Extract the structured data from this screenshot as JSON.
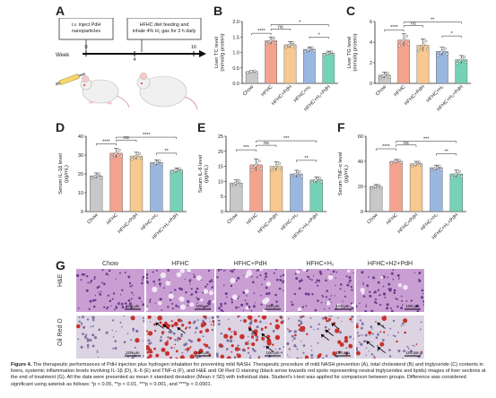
{
  "panels": {
    "A": {
      "letter": "A",
      "step1": "i.v. inject PdH\nnanoparticles",
      "step2": "HFHC diet feeding and\ninhale 4% H₂ gas for 3 h daily",
      "week_label": "Week",
      "ticks": [
        "0",
        "4",
        "16"
      ]
    },
    "B": {
      "letter": "B"
    },
    "C": {
      "letter": "C"
    },
    "D": {
      "letter": "D"
    },
    "E": {
      "letter": "E"
    },
    "F": {
      "letter": "F"
    },
    "G": {
      "letter": "G"
    }
  },
  "groups": [
    "Chow",
    "HFHC",
    "HFHC+PdH",
    "HFHC+H₂",
    "HFHC+H₂+PdH"
  ],
  "colors": {
    "chow": "#c8c8c8",
    "hfhc": "#f4a38f",
    "pdh": "#f7c88f",
    "h2": "#9ab7e0",
    "h2pdh": "#76d2b6"
  },
  "chart_data": [
    {
      "id": "B",
      "type": "bar",
      "ylabel": "Liver TC level\n(mmol/g protein)",
      "ylim": [
        0,
        2.0
      ],
      "yticks": [
        "0.0",
        "0.5",
        "1.0",
        "1.5",
        "2.0"
      ],
      "categories": [
        "Chow",
        "HFHC",
        "HFHC+PdH",
        "HFHC+H₂",
        "HFHC+H₂+PdH"
      ],
      "values": [
        0.38,
        1.38,
        1.25,
        1.1,
        0.98
      ],
      "errors": [
        0.03,
        0.12,
        0.1,
        0.08,
        0.06
      ],
      "sig": [
        {
          "from": 0,
          "to": 1,
          "label": "****",
          "level": 1.62
        },
        {
          "from": 1,
          "to": 2,
          "label": "ns",
          "level": 1.76
        },
        {
          "from": 1,
          "to": 4,
          "label": "*",
          "level": 1.9
        },
        {
          "from": 3,
          "to": 4,
          "label": "*",
          "level": 1.5
        }
      ]
    },
    {
      "id": "C",
      "type": "bar",
      "ylabel": "Liver TG level\n(mmol/g protein)",
      "ylim": [
        0,
        6
      ],
      "yticks": [
        "0",
        "2",
        "4",
        "6"
      ],
      "categories": [
        "Chow",
        "HFHC",
        "HFHC+PdH",
        "HFHC+H₂",
        "HFHC+H₂+PdH"
      ],
      "values": [
        0.8,
        4.2,
        3.7,
        3.1,
        2.3
      ],
      "errors": [
        0.3,
        0.6,
        0.6,
        0.4,
        0.4
      ],
      "sig": [
        {
          "from": 0,
          "to": 1,
          "label": "****",
          "level": 5.2
        },
        {
          "from": 1,
          "to": 2,
          "label": "ns",
          "level": 5.6
        },
        {
          "from": 1,
          "to": 4,
          "label": "**",
          "level": 5.95
        },
        {
          "from": 3,
          "to": 4,
          "label": "*",
          "level": 4.6
        }
      ]
    },
    {
      "id": "D",
      "type": "bar",
      "ylabel": "Serum IL-1β level\n(pg/mL)",
      "ylim": [
        0,
        40
      ],
      "yticks": [
        "0",
        "10",
        "20",
        "30",
        "40"
      ],
      "categories": [
        "Chow",
        "HFHC",
        "HFHC+PdH",
        "HFHC+H₂",
        "HFHC+H₂+PdH"
      ],
      "values": [
        19,
        31,
        29.5,
        26,
        22
      ],
      "errors": [
        1.5,
        2.5,
        2,
        1.5,
        1.2
      ],
      "sig": [
        {
          "from": 0,
          "to": 1,
          "label": "****",
          "level": 36
        },
        {
          "from": 1,
          "to": 2,
          "label": "ns",
          "level": 38
        },
        {
          "from": 1,
          "to": 4,
          "label": "****",
          "level": 39.5
        },
        {
          "from": 3,
          "to": 4,
          "label": "**",
          "level": 31
        }
      ]
    },
    {
      "id": "E",
      "type": "bar",
      "ylabel": "Serum IL-6 level\n(pg/mL)",
      "ylim": [
        0,
        25
      ],
      "yticks": [
        "0",
        "5",
        "10",
        "15",
        "20",
        "25"
      ],
      "categories": [
        "Chow",
        "HFHC",
        "HFHC+PdH",
        "HFHC+H₂",
        "HFHC+H₂+PdH"
      ],
      "values": [
        9.5,
        15.5,
        15,
        12.5,
        10.5
      ],
      "errors": [
        1,
        2,
        1.5,
        1.2,
        1
      ],
      "sig": [
        {
          "from": 0,
          "to": 1,
          "label": "***",
          "level": 20.5
        },
        {
          "from": 1,
          "to": 2,
          "label": "ns",
          "level": 22
        },
        {
          "from": 1,
          "to": 4,
          "label": "***",
          "level": 23.5
        },
        {
          "from": 3,
          "to": 4,
          "label": "**",
          "level": 17
        }
      ]
    },
    {
      "id": "F",
      "type": "bar",
      "ylabel": "Serum TNF-α level\n(pg/mL)",
      "ylim": [
        0,
        60
      ],
      "yticks": [
        "0",
        "20",
        "40",
        "60"
      ],
      "categories": [
        "Chow",
        "HFHC",
        "HFHC+PdH",
        "HFHC+H₂",
        "HFHC+H₂+PdH"
      ],
      "values": [
        20,
        40,
        38,
        35,
        30
      ],
      "errors": [
        1.5,
        1.5,
        2,
        2,
        3
      ],
      "sig": [
        {
          "from": 0,
          "to": 1,
          "label": "****",
          "level": 50
        },
        {
          "from": 1,
          "to": 2,
          "label": "ns",
          "level": 53
        },
        {
          "from": 1,
          "to": 4,
          "label": "***",
          "level": 56
        },
        {
          "from": 3,
          "to": 4,
          "label": "**",
          "level": 46
        }
      ]
    }
  ],
  "histology": {
    "columns": [
      "Chow",
      "HFHC",
      "HFHC+PdH",
      "HFHC+H₂",
      "HFHC+H2+PdH"
    ],
    "rows": [
      "H&E",
      "Oil Red O"
    ],
    "scale_bar": "100 μm"
  },
  "caption": {
    "figure_label": "Figure 4.",
    "text": " The therapeutic performances of PdH injection plus hydrogen inhalation for preventing mild NASH. Therapeutic procedure of mild NASH prevention (A), total cholesterol (B) and triglyceride (C) contents in livers, systemic inflammation levels involving IL-1β (D), IL-6 (E) and TNF-α (F), and H&E and Oil Red O staining (black arrow towards red spots representing neutral triglycerides and lipids) images of liver sections at the end of treatment (G). All the data were presented as mean ± standard deviation (Mean ± SD) with individual data. Student's t-test was applied for comparison between groups. Difference was considered significant using asterisk as follows: *p < 0.05, **p < 0.01, ***p < 0.001, and ****p < 0.0001."
  }
}
